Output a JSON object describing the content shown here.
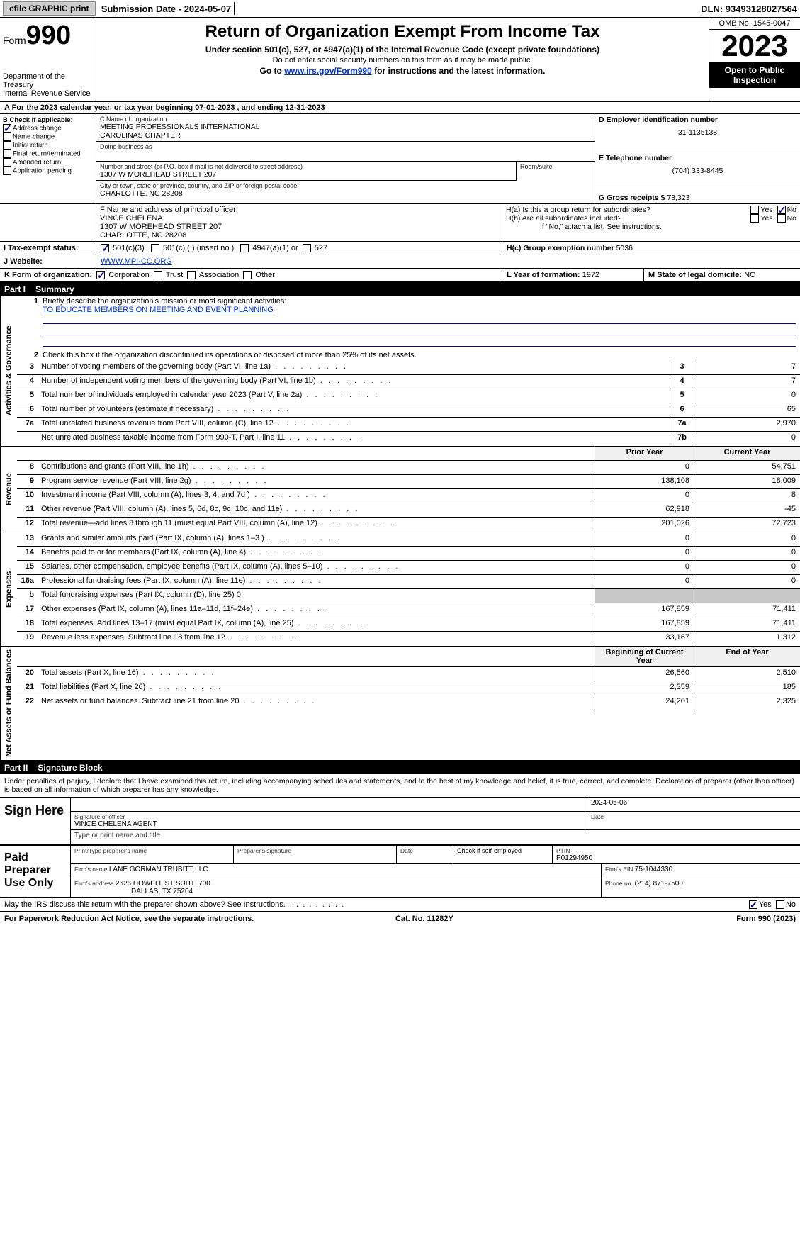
{
  "topbar": {
    "efile": "efile GRAPHIC print",
    "submission": "Submission Date - 2024-05-07",
    "dln": "DLN: 93493128027564"
  },
  "header": {
    "form_label": "Form",
    "form_number": "990",
    "dept": "Department of the Treasury",
    "irs": "Internal Revenue Service",
    "title": "Return of Organization Exempt From Income Tax",
    "sub1": "Under section 501(c), 527, or 4947(a)(1) of the Internal Revenue Code (except private foundations)",
    "sub2": "Do not enter social security numbers on this form as it may be made public.",
    "sub3_pre": "Go to ",
    "sub3_link": "www.irs.gov/Form990",
    "sub3_post": " for instructions and the latest information.",
    "omb": "OMB No. 1545-0047",
    "year": "2023",
    "open": "Open to Public Inspection"
  },
  "rowA": "A  For the 2023 calendar year, or tax year beginning 07-01-2023   , and ending 12-31-2023",
  "boxB": {
    "label": "B Check if applicable:",
    "addr_change": "Address change",
    "name_change": "Name change",
    "initial": "Initial return",
    "final": "Final return/terminated",
    "amended": "Amended return",
    "app_pending": "Application pending"
  },
  "boxC": {
    "name_label": "C Name of organization",
    "name1": "MEETING PROFESSIONALS INTERNATIONAL",
    "name2": "CAROLINAS CHAPTER",
    "dba_label": "Doing business as",
    "street_label": "Number and street (or P.O. box if mail is not delivered to street address)",
    "street": "1307 W MOREHEAD STREET 207",
    "room_label": "Room/suite",
    "city_label": "City or town, state or province, country, and ZIP or foreign postal code",
    "city": "CHARLOTTE, NC  28208"
  },
  "boxD": {
    "label": "D Employer identification number",
    "value": "31-1135138"
  },
  "boxE": {
    "label": "E Telephone number",
    "value": "(704) 333-8445"
  },
  "boxG": {
    "label": "G Gross receipts $",
    "value": "73,323"
  },
  "boxF": {
    "label": "F  Name and address of principal officer:",
    "name": "VINCE CHELENA",
    "addr1": "1307 W MOREHEAD STREET 207",
    "addr2": "CHARLOTTE, NC  28208"
  },
  "boxH": {
    "a_label": "H(a)  Is this a group return for subordinates?",
    "b_label": "H(b)  Are all subordinates included?",
    "note": "If \"No,\" attach a list. See instructions.",
    "c_label": "H(c)  Group exemption number   ",
    "c_value": "5036",
    "yes": "Yes",
    "no": "No"
  },
  "boxI": {
    "label": "I   Tax-exempt status:",
    "c3": "501(c)(3)",
    "c_other": "501(c) (  ) (insert no.)",
    "a1": "4947(a)(1) or",
    "s527": "527"
  },
  "boxJ": {
    "label": "J   Website: ",
    "value": "WWW.MPI-CC.ORG"
  },
  "boxK": {
    "label": "K Form of organization:",
    "corp": "Corporation",
    "trust": "Trust",
    "assoc": "Association",
    "other": "Other"
  },
  "boxL": {
    "label": "L Year of formation:",
    "value": "1972"
  },
  "boxM": {
    "label": "M State of legal domicile:",
    "value": "NC"
  },
  "part1": {
    "bar": "Part I",
    "title": "Summary"
  },
  "sideTabs": {
    "gov": "Activities & Governance",
    "rev": "Revenue",
    "exp": "Expenses",
    "net": "Net Assets or Fund Balances"
  },
  "summary": {
    "line1_label": "Briefly describe the organization's mission or most significant activities:",
    "line1_text": "TO EDUCATE MEMBERS ON MEETING AND EVENT PLANNING",
    "line2": "Check this box          if the organization discontinued its operations or disposed of more than 25% of its net assets.",
    "lines_gov": [
      {
        "n": "3",
        "d": "Number of voting members of the governing body (Part VI, line 1a)",
        "box": "3",
        "v": "7"
      },
      {
        "n": "4",
        "d": "Number of independent voting members of the governing body (Part VI, line 1b)",
        "box": "4",
        "v": "7"
      },
      {
        "n": "5",
        "d": "Total number of individuals employed in calendar year 2023 (Part V, line 2a)",
        "box": "5",
        "v": "0"
      },
      {
        "n": "6",
        "d": "Total number of volunteers (estimate if necessary)",
        "box": "6",
        "v": "65"
      },
      {
        "n": "7a",
        "d": "Total unrelated business revenue from Part VIII, column (C), line 12",
        "box": "7a",
        "v": "2,970"
      },
      {
        "n": "",
        "d": "Net unrelated business taxable income from Form 990-T, Part I, line 11",
        "box": "7b",
        "v": "0"
      }
    ],
    "col_head_prior": "Prior Year",
    "col_head_curr": "Current Year",
    "lines_rev": [
      {
        "n": "8",
        "d": "Contributions and grants (Part VIII, line 1h)",
        "p": "0",
        "c": "54,751"
      },
      {
        "n": "9",
        "d": "Program service revenue (Part VIII, line 2g)",
        "p": "138,108",
        "c": "18,009"
      },
      {
        "n": "10",
        "d": "Investment income (Part VIII, column (A), lines 3, 4, and 7d )",
        "p": "0",
        "c": "8"
      },
      {
        "n": "11",
        "d": "Other revenue (Part VIII, column (A), lines 5, 6d, 8c, 9c, 10c, and 11e)",
        "p": "62,918",
        "c": "-45"
      },
      {
        "n": "12",
        "d": "Total revenue—add lines 8 through 11 (must equal Part VIII, column (A), line 12)",
        "p": "201,026",
        "c": "72,723"
      }
    ],
    "lines_exp": [
      {
        "n": "13",
        "d": "Grants and similar amounts paid (Part IX, column (A), lines 1–3 )",
        "p": "0",
        "c": "0"
      },
      {
        "n": "14",
        "d": "Benefits paid to or for members (Part IX, column (A), line 4)",
        "p": "0",
        "c": "0"
      },
      {
        "n": "15",
        "d": "Salaries, other compensation, employee benefits (Part IX, column (A), lines 5–10)",
        "p": "0",
        "c": "0"
      },
      {
        "n": "16a",
        "d": "Professional fundraising fees (Part IX, column (A), line 11e)",
        "p": "0",
        "c": "0"
      },
      {
        "n": "b",
        "d": "Total fundraising expenses (Part IX, column (D), line 25) 0",
        "p": "",
        "c": "",
        "shaded": true
      },
      {
        "n": "17",
        "d": "Other expenses (Part IX, column (A), lines 11a–11d, 11f–24e)",
        "p": "167,859",
        "c": "71,411"
      },
      {
        "n": "18",
        "d": "Total expenses. Add lines 13–17 (must equal Part IX, column (A), line 25)",
        "p": "167,859",
        "c": "71,411"
      },
      {
        "n": "19",
        "d": "Revenue less expenses. Subtract line 18 from line 12",
        "p": "33,167",
        "c": "1,312"
      }
    ],
    "col_head_begin": "Beginning of Current Year",
    "col_head_end": "End of Year",
    "lines_net": [
      {
        "n": "20",
        "d": "Total assets (Part X, line 16)",
        "p": "26,560",
        "c": "2,510"
      },
      {
        "n": "21",
        "d": "Total liabilities (Part X, line 26)",
        "p": "2,359",
        "c": "185"
      },
      {
        "n": "22",
        "d": "Net assets or fund balances. Subtract line 21 from line 20",
        "p": "24,201",
        "c": "2,325"
      }
    ]
  },
  "part2": {
    "bar": "Part II",
    "title": "Signature Block"
  },
  "sig": {
    "disclaimer": "Under penalties of perjury, I declare that I have examined this return, including accompanying schedules and statements, and to the best of my knowledge and belief, it is true, correct, and complete. Declaration of preparer (other than officer) is based on all information of which preparer has any knowledge.",
    "sign_here": "Sign Here",
    "sig_officer_label": "Signature of officer",
    "officer_name": "VINCE CHELENA  AGENT",
    "type_label": "Type or print name and title",
    "date_label": "Date",
    "date_value": "2024-05-06",
    "paid": "Paid Preparer Use Only",
    "prep_name_label": "Print/Type preparer's name",
    "prep_sig_label": "Preparer's signature",
    "ptin_label": "PTIN",
    "ptin": "P01294950",
    "check_self": "Check         if self-employed",
    "firm_name_label": "Firm's name   ",
    "firm_name": "LANE GORMAN TRUBITT LLC",
    "firm_ein_label": "Firm's EIN ",
    "firm_ein": "75-1044330",
    "firm_addr_label": "Firm's address ",
    "firm_addr1": "2626 HOWELL ST SUITE 700",
    "firm_addr2": "DALLAS, TX  75204",
    "phone_label": "Phone no.",
    "phone": "(214) 871-7500",
    "discuss": "May the IRS discuss this return with the preparer shown above? See Instructions.",
    "yes": "Yes",
    "no": "No"
  },
  "footer": {
    "left": "For Paperwork Reduction Act Notice, see the separate instructions.",
    "mid": "Cat. No. 11282Y",
    "right_pre": "Form ",
    "right_bold": "990",
    "right_post": " (2023)"
  },
  "colors": {
    "link": "#0033cc",
    "checked": "#00008b",
    "shaded": "#c8c8c8"
  }
}
